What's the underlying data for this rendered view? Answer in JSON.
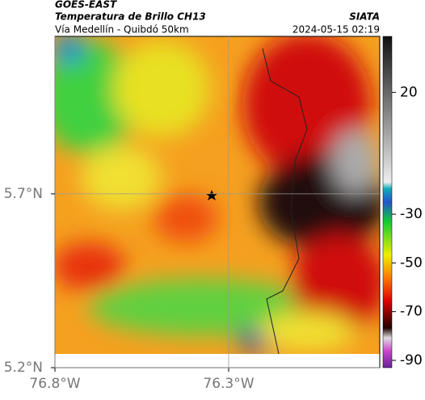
{
  "header": {
    "satellite": "GOES-EAST",
    "product": "Temperatura de Brillo CH13",
    "route": "Vía Medellín - Quibdó 50km",
    "source": "SIATA",
    "timestamp": "2024-05-15 02:19"
  },
  "map": {
    "xlim": [
      -76.8,
      -75.865
    ],
    "ylim": [
      5.2,
      6.153
    ],
    "xticks": [
      {
        "value": -76.8,
        "label": "76.8°W"
      },
      {
        "value": -76.3,
        "label": "76.3°W"
      }
    ],
    "yticks": [
      {
        "value": 5.2,
        "label": "5.2°N"
      },
      {
        "value": 5.7,
        "label": "5.7°N"
      }
    ],
    "grid": true
  },
  "colorbar": {
    "clim": [
      -93,
      43
    ],
    "ticks": [
      20,
      -30,
      -50,
      -70,
      -90
    ]
  }
}
